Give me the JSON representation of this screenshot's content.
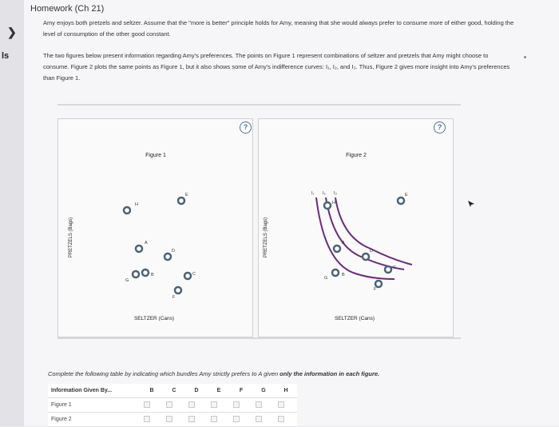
{
  "rail": {
    "chevron": "❯",
    "label": "ls"
  },
  "header": {
    "title": "Homework (Ch 21)"
  },
  "intro": {
    "p1": "Amy enjoys both pretzels and seltzer. Assume that the \"more is better\" principle holds for Amy, meaning that she would always prefer to consume more of either good, holding the level of consumption of the other good constant.",
    "p2": "The two figures below present information regarding Amy's preferences. The points on Figure 1 represent combinations of seltzer and pretzels that Amy might choose to consume. Figure 2 plots the same points as Figure 1, but it also shows some of Amy's indifference curves: I₁, I₂, and I₃. Thus, Figure 2 gives more insight into Amy's preferences than Figure 1."
  },
  "help_label": "?",
  "figure1": {
    "title": "Figure 1",
    "ylabel": "PRETZELS (Bags)",
    "xlabel": "SELTZER (Cans)",
    "points": [
      "H",
      "E",
      "A",
      "D",
      "G",
      "B",
      "C",
      "F"
    ]
  },
  "figure2": {
    "title": "Figure 2",
    "ylabel": "PRETZELS (Bags)",
    "xlabel": "SELTZER (Cans)",
    "curves": [
      "I₁",
      "I₂",
      "I₃"
    ],
    "points": [
      "H",
      "E",
      "A",
      "D",
      "G",
      "B",
      "C",
      "F"
    ]
  },
  "colors": {
    "point": "#4a6278",
    "curve": "#6a2a7a",
    "help": "#4a6fa5"
  },
  "instruction": {
    "lead": "Complete the following table by indicating which bundles Amy strictly prefers to A given ",
    "emph": "only the information in each figure."
  },
  "table": {
    "header": "Information Given By...",
    "columns": [
      "B",
      "C",
      "D",
      "E",
      "F",
      "G",
      "H"
    ],
    "rows": [
      "Figure 1",
      "Figure 2"
    ]
  }
}
